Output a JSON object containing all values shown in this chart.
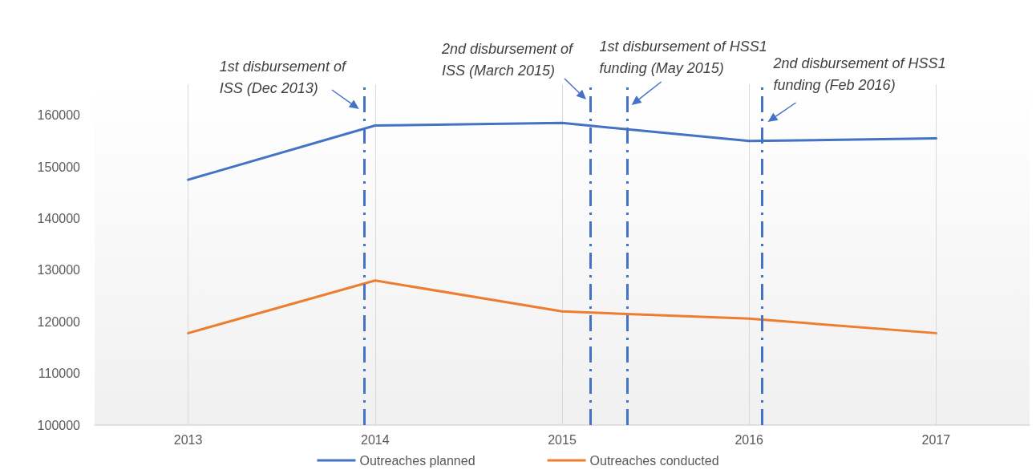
{
  "chart_data": {
    "type": "line",
    "x": [
      2013,
      2014,
      2015,
      2016,
      2017
    ],
    "xlim": [
      2012.5,
      2017.5
    ],
    "xticks": [
      2013,
      2014,
      2015,
      2016,
      2017
    ],
    "ylim": [
      100000,
      166000
    ],
    "yticks": [
      100000,
      110000,
      120000,
      130000,
      140000,
      150000,
      160000
    ],
    "series": [
      {
        "name": "Outreaches planned",
        "color": "#4472c4",
        "values": [
          147500,
          158000,
          158500,
          155000,
          155500
        ]
      },
      {
        "name": "Outreaches conducted",
        "color": "#ed7d31",
        "values": [
          117800,
          128000,
          122000,
          120600,
          117800
        ]
      }
    ],
    "ref_lines": [
      {
        "axis": "x",
        "value": 2013.94,
        "label": "1st disbursement of ISS (Dec 2013)",
        "color": "#4472c4",
        "line_style": "dashed"
      },
      {
        "axis": "x",
        "value": 2015.15,
        "label": "2nd disbursement of ISS (March 2015)",
        "color": "#4472c4",
        "line_style": "dashed"
      },
      {
        "axis": "x",
        "value": 2015.35,
        "label": "1st disbursement of HSS1 funding (May 2015)",
        "color": "#4472c4",
        "line_style": "dashed"
      },
      {
        "axis": "x",
        "value": 2016.07,
        "label": "2nd disbursement of HSS1 funding (Feb 2016)",
        "color": "#4472c4",
        "line_style": "dashed"
      }
    ],
    "grid": "x",
    "legend": "bottom"
  }
}
